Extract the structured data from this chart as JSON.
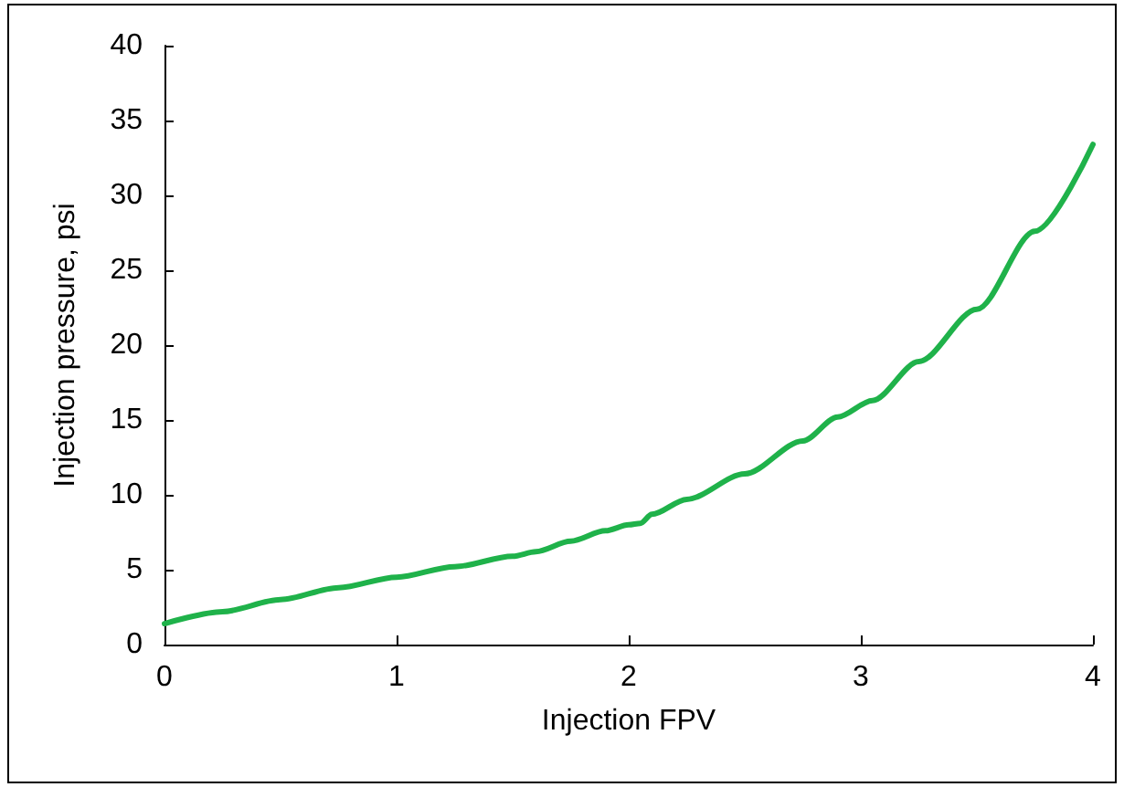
{
  "chart_data": {
    "type": "line",
    "xlabel": "Injection FPV",
    "ylabel": "Injection pressure, psi",
    "x": [
      0,
      0.25,
      0.5,
      0.75,
      1,
      1.25,
      1.5,
      1.6,
      1.75,
      1.9,
      2,
      2.05,
      2.1,
      2.25,
      2.5,
      2.75,
      2.9,
      3.05,
      3.25,
      3.5,
      3.75,
      4
    ],
    "series": [
      {
        "color": "#1fb24a",
        "values": [
          1.4,
          2.2,
          3.0,
          3.8,
          4.5,
          5.2,
          5.9,
          6.2,
          6.9,
          7.6,
          8.0,
          8.1,
          8.7,
          9.7,
          11.4,
          13.6,
          15.2,
          16.3,
          18.9,
          22.4,
          27.6,
          33.4
        ]
      }
    ],
    "xlim": [
      0,
      4
    ],
    "xticks": [
      0,
      1,
      2,
      3,
      4
    ],
    "ylim": [
      0,
      40
    ],
    "yticks": [
      0,
      5,
      10,
      15,
      20,
      25,
      30,
      35,
      40
    ],
    "grid": false,
    "line_style": "solid",
    "marker": "none"
  }
}
